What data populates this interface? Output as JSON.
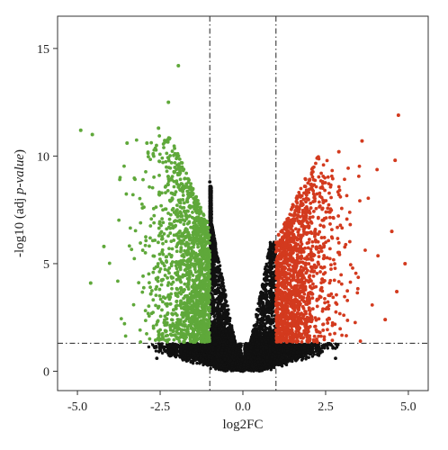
{
  "chart_data": {
    "type": "scatter",
    "title": "",
    "xlabel": "log2FC",
    "ylabel_prefix": "-log10 (adj ",
    "ylabel_italic": "p-value",
    "ylabel_suffix": ")",
    "xlim": [
      -5.6,
      5.6
    ],
    "ylim": [
      -0.9,
      16.5
    ],
    "x_ticks": [
      -5.0,
      -2.5,
      0.0,
      2.5,
      5.0
    ],
    "x_tick_labels": [
      "-5.0",
      "-2.5",
      "0.0",
      "2.5",
      "5.0"
    ],
    "y_ticks": [
      0,
      5,
      10,
      15
    ],
    "y_tick_labels": [
      "0",
      "5",
      "10",
      "15"
    ],
    "grid": false,
    "legend": "none",
    "thresholds": {
      "vertical": [
        -1.0,
        1.0
      ],
      "horizontal": [
        1.3
      ]
    },
    "colors": {
      "down": "#5fa83a",
      "up": "#d33a1e",
      "not_significant": "#111111"
    },
    "series": [
      {
        "group": "down",
        "color": "#5fa83a",
        "approx_count": 1500,
        "x_range": [
          -5.0,
          -1.0
        ],
        "y_range": [
          1.3,
          14.2
        ],
        "highlight_points": [
          {
            "x": -4.9,
            "y": 11.2
          },
          {
            "x": -4.55,
            "y": 11.0
          },
          {
            "x": -1.95,
            "y": 14.2
          },
          {
            "x": -2.25,
            "y": 12.5
          },
          {
            "x": -4.2,
            "y": 5.8
          },
          {
            "x": -4.6,
            "y": 4.1
          },
          {
            "x": -3.5,
            "y": 10.6
          },
          {
            "x": -2.9,
            "y": 10.6
          },
          {
            "x": -2.55,
            "y": 11.3
          }
        ]
      },
      {
        "group": "up",
        "color": "#d33a1e",
        "approx_count": 1400,
        "x_range": [
          1.0,
          5.0
        ],
        "y_range": [
          1.3,
          12.0
        ],
        "highlight_points": [
          {
            "x": 4.7,
            "y": 11.9
          },
          {
            "x": 3.6,
            "y": 10.7
          },
          {
            "x": 2.9,
            "y": 10.2
          },
          {
            "x": 4.6,
            "y": 9.8
          },
          {
            "x": 4.5,
            "y": 6.5
          },
          {
            "x": 4.9,
            "y": 5.0
          },
          {
            "x": 4.65,
            "y": 3.7
          },
          {
            "x": 4.3,
            "y": 2.4
          }
        ]
      },
      {
        "group": "not_significant",
        "color": "#111111",
        "approx_count": 7000,
        "x_range": [
          -3.1,
          3.2
        ],
        "y_range": [
          0.0,
          8.8
        ],
        "highlight_points": [
          {
            "x": -1.0,
            "y": 8.8
          },
          {
            "x": 1.0,
            "y": 5.8
          },
          {
            "x": 0.0,
            "y": 0.0
          },
          {
            "x": -2.6,
            "y": 0.6
          },
          {
            "x": 2.8,
            "y": 0.6
          }
        ]
      }
    ]
  }
}
